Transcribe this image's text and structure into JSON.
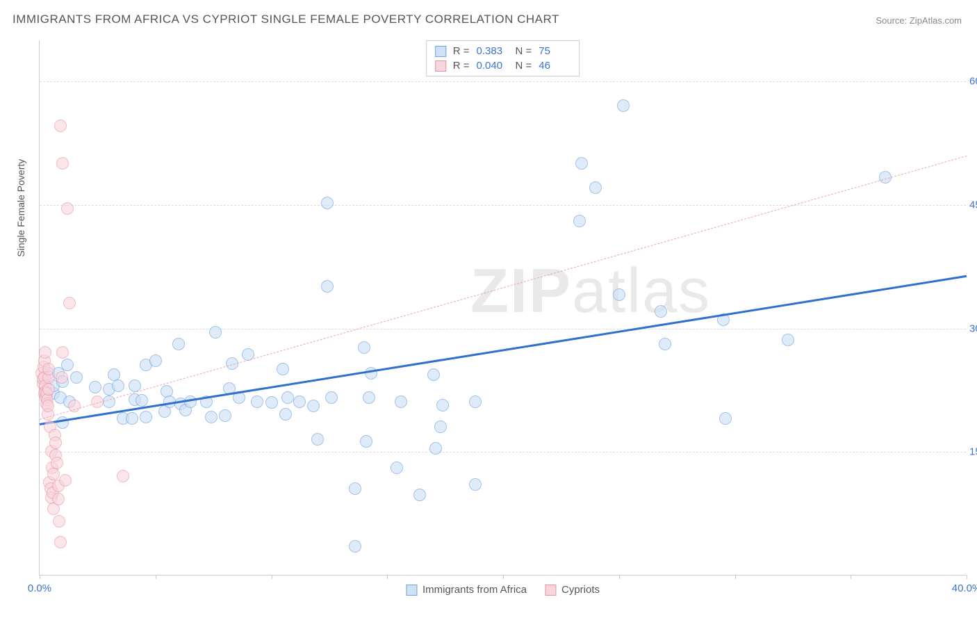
{
  "title": "IMMIGRANTS FROM AFRICA VS CYPRIOT SINGLE FEMALE POVERTY CORRELATION CHART",
  "source_label": "Source: ZipAtlas.com",
  "y_axis_title": "Single Female Poverty",
  "watermark_bold": "ZIP",
  "watermark_light": "atlas",
  "chart": {
    "type": "scatter",
    "xlim": [
      0,
      40
    ],
    "ylim": [
      0,
      65
    ],
    "x_ticks": [
      0,
      5,
      10,
      15,
      20,
      25,
      30,
      35,
      40
    ],
    "x_tick_labels": {
      "0": "0.0%",
      "40": "40.0%"
    },
    "y_grid": [
      15,
      30,
      45,
      60
    ],
    "y_tick_labels": {
      "15": "15.0%",
      "30": "30.0%",
      "45": "45.0%",
      "60": "60.0%"
    },
    "background_color": "#ffffff",
    "grid_color": "#dddddd",
    "axis_color": "#cccccc",
    "tick_label_color": "#3b73d1",
    "point_radius": 9,
    "point_border_width": 1.2
  },
  "series": [
    {
      "key": "africa",
      "label": "Immigrants from Africa",
      "fill": "#cfe1f5",
      "stroke": "#6fa3e0",
      "fill_opacity": 0.65,
      "trend": {
        "style": "solid",
        "color": "#2f6fd0",
        "width": 3,
        "x0": 0,
        "y0": 18.5,
        "x1": 40,
        "y1": 36.5
      },
      "stats": {
        "R": "0.383",
        "N": "75"
      },
      "points": [
        [
          0.4,
          24.5
        ],
        [
          0.6,
          22.0
        ],
        [
          0.6,
          23.0
        ],
        [
          0.8,
          24.5
        ],
        [
          0.9,
          21.5
        ],
        [
          1.0,
          23.5
        ],
        [
          1.0,
          18.5
        ],
        [
          1.2,
          25.5
        ],
        [
          1.3,
          21.0
        ],
        [
          1.6,
          24.0
        ],
        [
          2.4,
          22.8
        ],
        [
          3.0,
          21.0
        ],
        [
          3.0,
          22.5
        ],
        [
          3.2,
          24.3
        ],
        [
          3.4,
          23.0
        ],
        [
          3.6,
          19.0
        ],
        [
          4.0,
          19.0
        ],
        [
          4.1,
          23.0
        ],
        [
          4.1,
          21.3
        ],
        [
          4.4,
          21.2
        ],
        [
          4.6,
          19.2
        ],
        [
          4.6,
          25.5
        ],
        [
          5.0,
          26.0
        ],
        [
          5.4,
          19.8
        ],
        [
          5.5,
          22.3
        ],
        [
          5.6,
          21.0
        ],
        [
          6.0,
          28.0
        ],
        [
          6.1,
          20.8
        ],
        [
          6.3,
          20.0
        ],
        [
          6.5,
          21.0
        ],
        [
          7.2,
          21.0
        ],
        [
          7.4,
          19.2
        ],
        [
          7.6,
          29.5
        ],
        [
          8.0,
          19.3
        ],
        [
          8.2,
          22.6
        ],
        [
          8.3,
          25.7
        ],
        [
          8.6,
          21.5
        ],
        [
          9.4,
          21.0
        ],
        [
          10.0,
          20.9
        ],
        [
          10.5,
          25.0
        ],
        [
          10.6,
          19.5
        ],
        [
          10.7,
          21.5
        ],
        [
          11.2,
          21.0
        ],
        [
          11.8,
          20.5
        ],
        [
          12.0,
          16.5
        ],
        [
          12.4,
          45.2
        ],
        [
          12.4,
          35.0
        ],
        [
          12.6,
          21.5
        ],
        [
          13.6,
          3.5
        ],
        [
          13.6,
          10.5
        ],
        [
          14.1,
          16.2
        ],
        [
          14.2,
          21.5
        ],
        [
          14.3,
          24.5
        ],
        [
          15.4,
          13.0
        ],
        [
          15.6,
          21.0
        ],
        [
          16.4,
          9.7
        ],
        [
          17.0,
          24.3
        ],
        [
          17.1,
          15.4
        ],
        [
          17.3,
          18.0
        ],
        [
          17.4,
          20.6
        ],
        [
          18.8,
          11.0
        ],
        [
          18.8,
          21.0
        ],
        [
          23.3,
          43.0
        ],
        [
          23.4,
          50.0
        ],
        [
          24.0,
          47.0
        ],
        [
          25.0,
          34.0
        ],
        [
          25.2,
          57.0
        ],
        [
          26.8,
          32.0
        ],
        [
          27.0,
          28.0
        ],
        [
          29.5,
          31.0
        ],
        [
          29.6,
          19.0
        ],
        [
          32.3,
          28.5
        ],
        [
          36.5,
          48.3
        ],
        [
          14.0,
          27.6
        ],
        [
          9.0,
          26.8
        ]
      ]
    },
    {
      "key": "cypriots",
      "label": "Cypriots",
      "fill": "#f8d4dc",
      "stroke": "#e890a7",
      "fill_opacity": 0.6,
      "trend": {
        "style": "dashed",
        "color": "#e9a6b6",
        "width": 1.5,
        "x0": 0,
        "y0": 19.0,
        "x1": 40,
        "y1": 51.0
      },
      "stats": {
        "R": "0.040",
        "N": "46"
      },
      "points": [
        [
          0.1,
          24.5
        ],
        [
          0.15,
          23.2
        ],
        [
          0.15,
          23.8
        ],
        [
          0.18,
          25.2
        ],
        [
          0.2,
          26.0
        ],
        [
          0.2,
          24.0
        ],
        [
          0.22,
          22.0
        ],
        [
          0.24,
          27.0
        ],
        [
          0.25,
          23.0
        ],
        [
          0.25,
          22.2
        ],
        [
          0.28,
          21.5
        ],
        [
          0.3,
          22.0
        ],
        [
          0.3,
          20.8
        ],
        [
          0.32,
          21.3
        ],
        [
          0.35,
          19.5
        ],
        [
          0.35,
          20.5
        ],
        [
          0.38,
          24.0
        ],
        [
          0.4,
          22.5
        ],
        [
          0.4,
          25.0
        ],
        [
          0.42,
          11.2
        ],
        [
          0.45,
          18.0
        ],
        [
          0.48,
          10.5
        ],
        [
          0.5,
          9.4
        ],
        [
          0.52,
          15.0
        ],
        [
          0.55,
          13.0
        ],
        [
          0.58,
          10.0
        ],
        [
          0.6,
          8.0
        ],
        [
          0.6,
          12.2
        ],
        [
          0.65,
          17.0
        ],
        [
          0.7,
          16.0
        ],
        [
          0.7,
          14.5
        ],
        [
          0.75,
          13.6
        ],
        [
          0.8,
          10.8
        ],
        [
          0.8,
          9.2
        ],
        [
          0.85,
          6.5
        ],
        [
          0.9,
          4.0
        ],
        [
          0.9,
          54.5
        ],
        [
          0.95,
          24.0
        ],
        [
          1.0,
          50.0
        ],
        [
          1.1,
          11.5
        ],
        [
          1.2,
          44.5
        ],
        [
          1.3,
          33.0
        ],
        [
          1.5,
          20.5
        ],
        [
          2.5,
          21.0
        ],
        [
          3.6,
          12.0
        ],
        [
          1.0,
          27.0
        ]
      ]
    }
  ],
  "stats_box": {
    "r_prefix": "R =",
    "n_prefix": "N ="
  },
  "legend_bottom": [
    {
      "swatch_fill": "#cfe1f5",
      "swatch_stroke": "#6fa3e0",
      "label": "Immigrants from Africa"
    },
    {
      "swatch_fill": "#f8d4dc",
      "swatch_stroke": "#e890a7",
      "label": "Cypriots"
    }
  ]
}
